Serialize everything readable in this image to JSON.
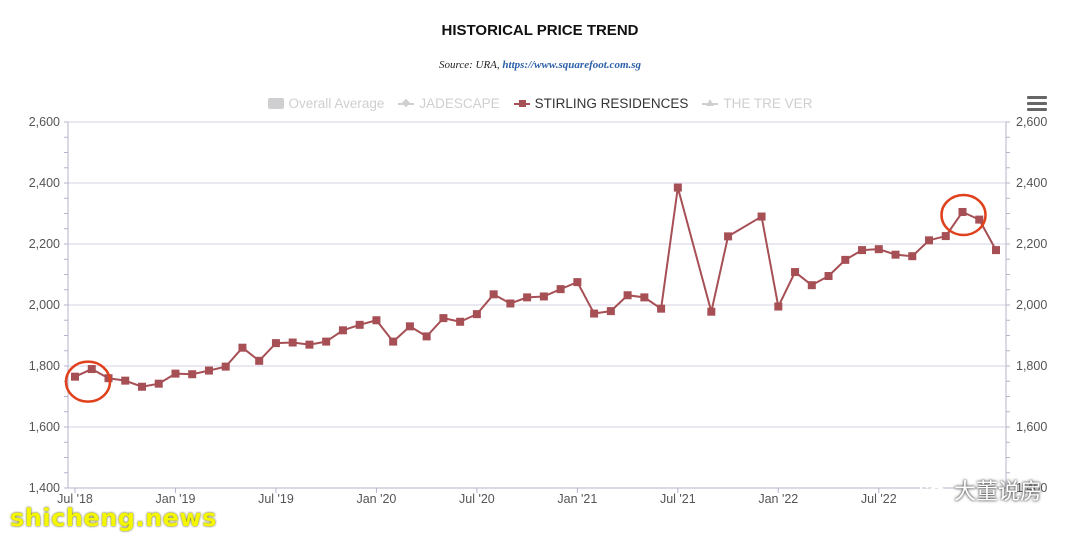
{
  "chart_data": {
    "type": "line",
    "title": "HISTORICAL PRICE TREND",
    "subtitle_source": "Source: URA, ",
    "subtitle_link": "https://www.squarefoot.com.sg",
    "legend": [
      {
        "name": "Overall Average",
        "symbol": "rect",
        "active": false
      },
      {
        "name": "JADESCAPE",
        "symbol": "diamond",
        "active": false
      },
      {
        "name": "STIRLING RESIDENCES",
        "symbol": "square",
        "active": true
      },
      {
        "name": "THE TRE VER",
        "symbol": "triangle",
        "active": false
      }
    ],
    "x_tick_labels": [
      "Jul '18",
      "Jan '19",
      "Jul '19",
      "Jan '20",
      "Jul '20",
      "Jan '21",
      "Jul '21",
      "Jan '22",
      "Jul '22"
    ],
    "y_tick_labels": [
      "1,400",
      "1,600",
      "1,800",
      "2,000",
      "2,200",
      "2,400",
      "2,600"
    ],
    "ylim": [
      1400,
      2600
    ],
    "grid": true,
    "highlighted_points": [
      "2018-07",
      "2022-12"
    ],
    "highlight_color": "#e0401c",
    "series": [
      {
        "name": "STIRLING RESIDENCES",
        "color": "#a64f55",
        "points": [
          [
            "2018-07",
            1765
          ],
          [
            "2018-08",
            1790
          ],
          [
            "2018-09",
            1760
          ],
          [
            "2018-10",
            1752
          ],
          [
            "2018-11",
            1732
          ],
          [
            "2018-12",
            1742
          ],
          [
            "2019-01",
            1775
          ],
          [
            "2019-02",
            1773
          ],
          [
            "2019-03",
            1785
          ],
          [
            "2019-04",
            1798
          ],
          [
            "2019-05",
            1860
          ],
          [
            "2019-06",
            1817
          ],
          [
            "2019-07",
            1875
          ],
          [
            "2019-08",
            1877
          ],
          [
            "2019-09",
            1870
          ],
          [
            "2019-10",
            1880
          ],
          [
            "2019-11",
            1917
          ],
          [
            "2019-12",
            1935
          ],
          [
            "2020-01",
            1950
          ],
          [
            "2020-02",
            1880
          ],
          [
            "2020-03",
            1930
          ],
          [
            "2020-04",
            1897
          ],
          [
            "2020-05",
            1957
          ],
          [
            "2020-06",
            1945
          ],
          [
            "2020-07",
            1970
          ],
          [
            "2020-08",
            2035
          ],
          [
            "2020-09",
            2005
          ],
          [
            "2020-10",
            2025
          ],
          [
            "2020-11",
            2028
          ],
          [
            "2020-12",
            2052
          ],
          [
            "2021-01",
            2075
          ],
          [
            "2021-02",
            1972
          ],
          [
            "2021-03",
            1980
          ],
          [
            "2021-04",
            2032
          ],
          [
            "2021-05",
            2025
          ],
          [
            "2021-06",
            1988
          ],
          [
            "2021-07",
            2385
          ],
          [
            "2021-09",
            1978
          ],
          [
            "2021-10",
            2225
          ],
          [
            "2021-12",
            2290
          ],
          [
            "2022-01",
            1995
          ],
          [
            "2022-02",
            2108
          ],
          [
            "2022-03",
            2065
          ],
          [
            "2022-04",
            2095
          ],
          [
            "2022-05",
            2148
          ],
          [
            "2022-06",
            2180
          ],
          [
            "2022-07",
            2183
          ],
          [
            "2022-08",
            2165
          ],
          [
            "2022-09",
            2160
          ],
          [
            "2022-10",
            2212
          ],
          [
            "2022-11",
            2226
          ],
          [
            "2022-12",
            2305
          ],
          [
            "2023-01",
            2280
          ],
          [
            "2023-02",
            2180
          ]
        ]
      }
    ]
  },
  "watermark": "shicheng.news",
  "brand_text": "大董说房",
  "brand_icon": "wechat-icon"
}
